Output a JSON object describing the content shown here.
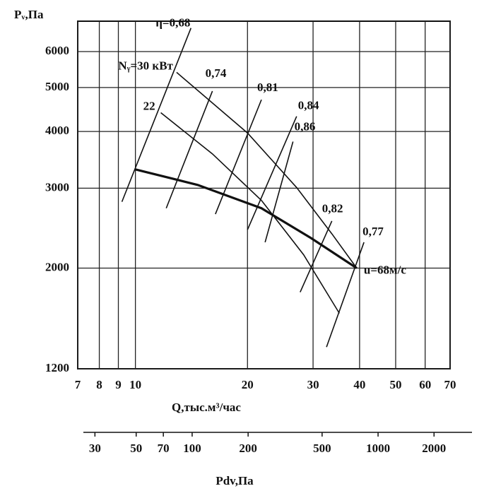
{
  "chart_data": {
    "type": "line",
    "y_label": "Pᵥ,Па",
    "x_label": "Q,тыс.м³/час",
    "x2_label": "Pdv,Па",
    "log_x": true,
    "log_y": true,
    "grid": true,
    "color": "#111",
    "xlim": [
      7,
      70
    ],
    "xticks": [
      7,
      8,
      9,
      10,
      20,
      30,
      40,
      50,
      60,
      70
    ],
    "ylim": [
      1200,
      7000
    ],
    "yticks": [
      1200,
      2000,
      3000,
      4000,
      5000,
      6000
    ],
    "x2lim": [
      26,
      3200
    ],
    "x2ticks": [
      30,
      50,
      70,
      100,
      200,
      500,
      1000,
      2000
    ],
    "series": [
      {
        "name": "Nᵧ=30 кВт",
        "x": [
          12.9,
          20.0,
          27.1,
          33.7,
          39.3
        ],
        "values": [
          5400,
          3970,
          3010,
          2380,
          2000
        ],
        "width": 1.6
      },
      {
        "name": "22",
        "x": [
          11.7,
          16.1,
          21.8,
          28.3,
          35.3
        ],
        "values": [
          4400,
          3570,
          2820,
          2140,
          1590
        ],
        "width": 1.6
      },
      {
        "name": "u=68м/с",
        "x": [
          10.0,
          14.7,
          21.8,
          29.6,
          39.3
        ],
        "values": [
          3300,
          3050,
          2710,
          2330,
          2000
        ],
        "width": 3.2
      },
      {
        "name": "η=0,68",
        "x": [
          9.2,
          14.1
        ],
        "values": [
          2800,
          6760
        ],
        "width": 1.6
      },
      {
        "name": "0,74",
        "x": [
          12.1,
          16.1
        ],
        "values": [
          2710,
          4910
        ],
        "width": 1.6
      },
      {
        "name": "0,81",
        "x": [
          16.4,
          21.8
        ],
        "values": [
          2630,
          4700
        ],
        "width": 1.6
      },
      {
        "name": "0,84",
        "x": [
          20.0,
          27.1
        ],
        "values": [
          2430,
          4320
        ],
        "width": 1.6
      },
      {
        "name": "0,86",
        "x": [
          22.3,
          26.5
        ],
        "values": [
          2280,
          3800
        ],
        "width": 1.6
      },
      {
        "name": "0,82",
        "x": [
          27.7,
          33.7
        ],
        "values": [
          1770,
          2540
        ],
        "width": 1.6
      },
      {
        "name": "0,77",
        "x": [
          32.6,
          41.1
        ],
        "values": [
          1340,
          2280
        ],
        "width": 1.6
      }
    ]
  }
}
